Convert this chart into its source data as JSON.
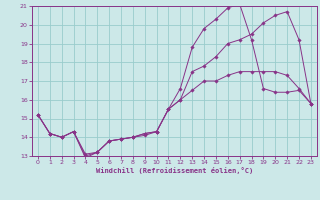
{
  "xlabel": "Windchill (Refroidissement éolien,°C)",
  "xlim": [
    -0.5,
    23.5
  ],
  "ylim": [
    13,
    21
  ],
  "yticks": [
    13,
    14,
    15,
    16,
    17,
    18,
    19,
    20,
    21
  ],
  "xticks": [
    0,
    1,
    2,
    3,
    4,
    5,
    6,
    7,
    8,
    9,
    10,
    11,
    12,
    13,
    14,
    15,
    16,
    17,
    18,
    19,
    20,
    21,
    22,
    23
  ],
  "bg_color": "#cce8e8",
  "line_color": "#883388",
  "grid_color": "#99cccc",
  "line1_x": [
    0,
    1,
    2,
    3,
    4,
    5,
    6,
    7,
    8,
    9,
    10,
    11,
    12,
    13,
    14,
    15,
    16,
    17,
    18,
    19,
    20,
    21,
    22,
    23
  ],
  "line1_y": [
    15.2,
    14.2,
    14.0,
    14.3,
    12.9,
    13.2,
    13.8,
    13.9,
    14.0,
    14.2,
    14.3,
    15.5,
    16.6,
    18.8,
    19.8,
    20.3,
    20.9,
    21.1,
    19.2,
    16.6,
    16.4,
    16.4,
    16.5,
    15.8
  ],
  "line2_x": [
    0,
    1,
    2,
    3,
    4,
    5,
    6,
    7,
    8,
    9,
    10,
    11,
    12,
    13,
    14,
    15,
    16,
    17,
    18,
    19,
    20,
    21,
    22,
    23
  ],
  "line2_y": [
    15.2,
    14.2,
    14.0,
    14.3,
    13.0,
    13.2,
    13.8,
    13.9,
    14.0,
    14.1,
    14.3,
    15.5,
    16.0,
    17.5,
    17.8,
    18.3,
    19.0,
    19.2,
    19.5,
    20.1,
    20.5,
    20.7,
    19.2,
    15.8
  ],
  "line3_x": [
    0,
    1,
    2,
    3,
    4,
    5,
    6,
    7,
    8,
    9,
    10,
    11,
    12,
    13,
    14,
    15,
    16,
    17,
    18,
    19,
    20,
    21,
    22,
    23
  ],
  "line3_y": [
    15.2,
    14.2,
    14.0,
    14.3,
    13.1,
    13.2,
    13.8,
    13.9,
    14.0,
    14.2,
    14.3,
    15.5,
    16.0,
    16.5,
    17.0,
    17.0,
    17.3,
    17.5,
    17.5,
    17.5,
    17.5,
    17.3,
    16.6,
    15.8
  ]
}
